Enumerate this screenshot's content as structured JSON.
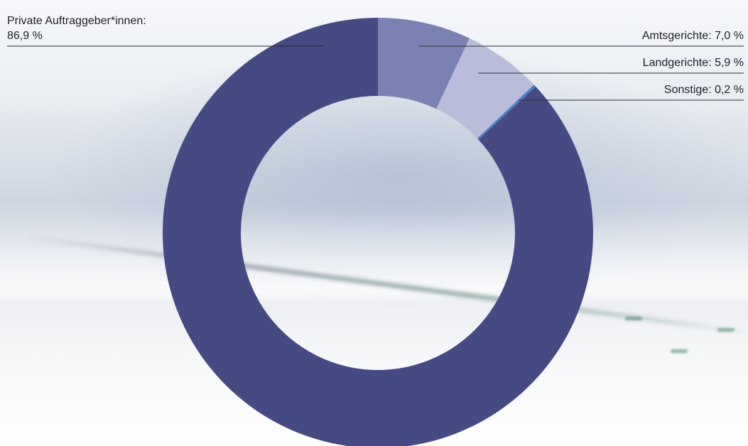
{
  "chart_data": {
    "type": "pie",
    "variant": "donut",
    "title": "",
    "slices": [
      {
        "label": "Amtsgerichte: 7,0 %",
        "value": 7.0,
        "color": "#7b82b2"
      },
      {
        "label": "Landgerichte: 5,9 %",
        "value": 5.9,
        "color": "#babdda"
      },
      {
        "label": "Sonstige: 0,2 %",
        "value": 0.2,
        "color": "#4e7fc4"
      },
      {
        "label": "Private Auftraggeber*innen:",
        "label_line2": "86,9 %",
        "value": 86.9,
        "color": "#464a82"
      }
    ],
    "legend": "none",
    "label_placement": "outside with leader lines"
  }
}
